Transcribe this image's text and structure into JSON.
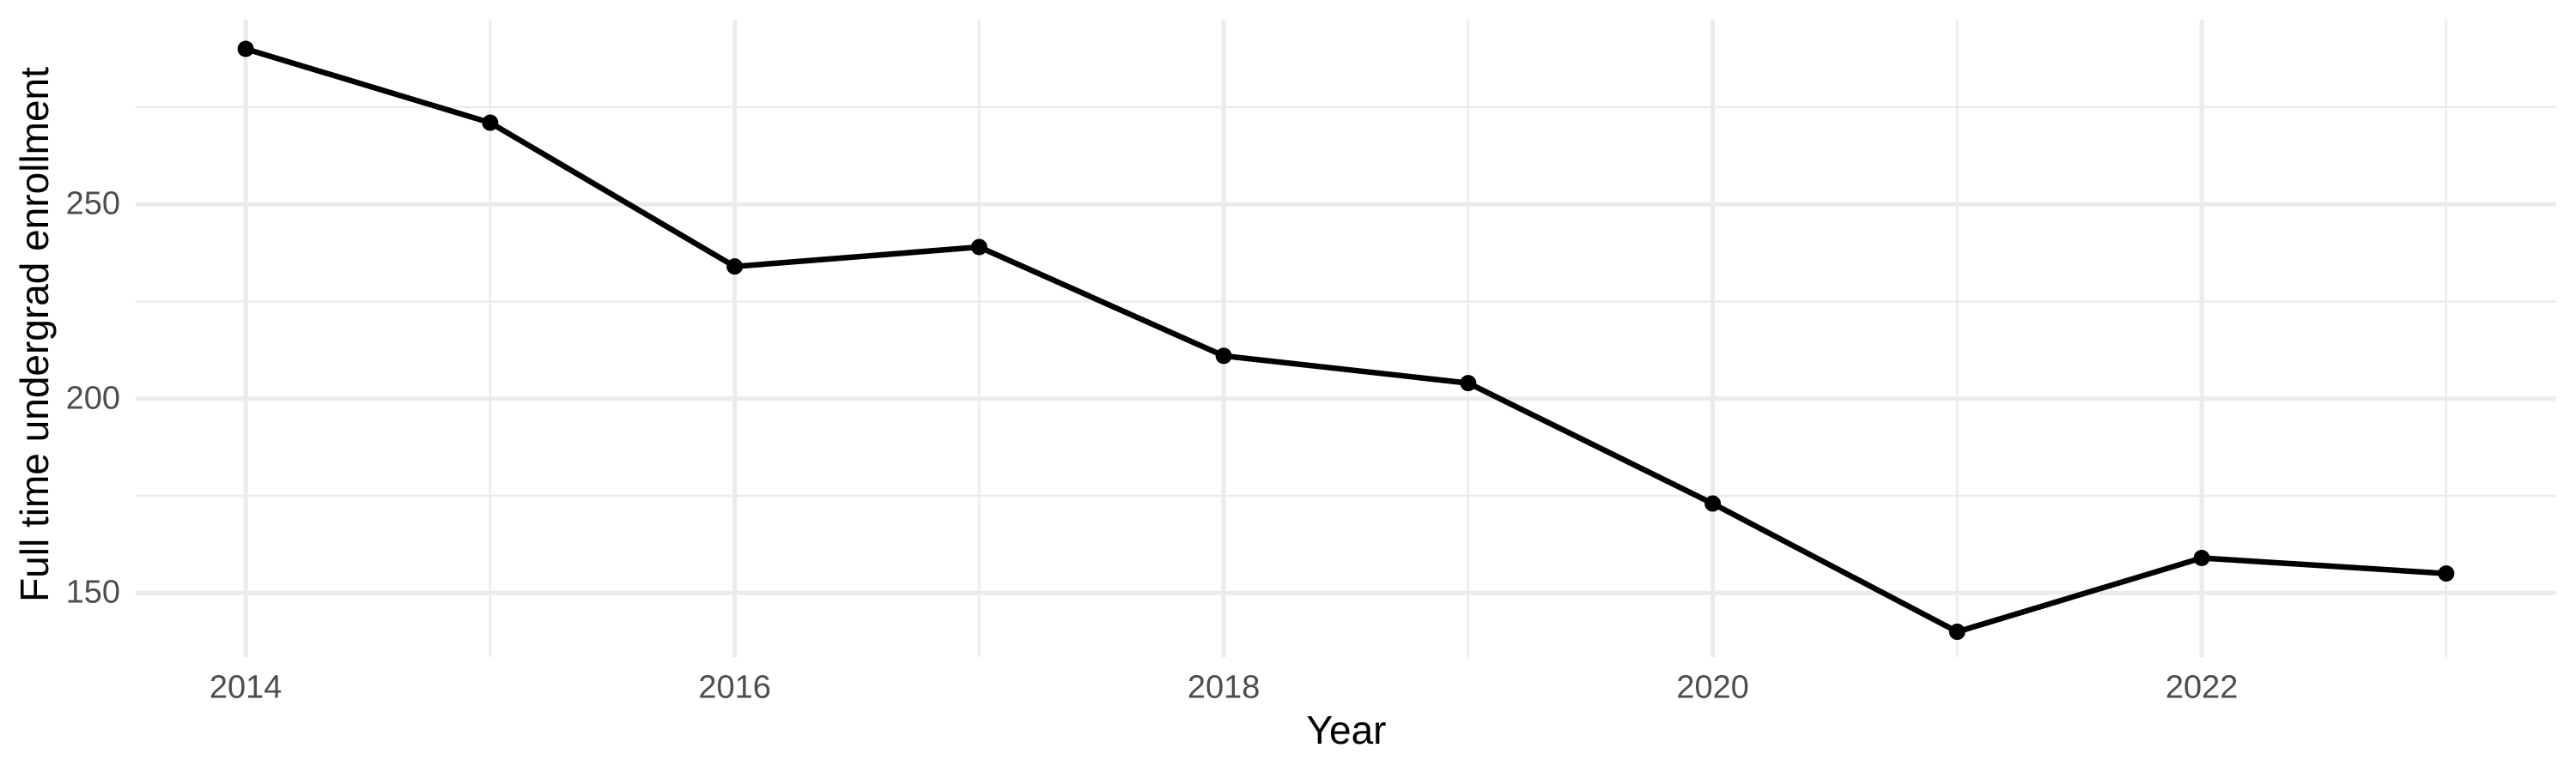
{
  "chart_data": {
    "type": "line",
    "title": "",
    "xlabel": "Year",
    "ylabel": "Full time undergrad enrollment",
    "x": [
      2014,
      2015,
      2016,
      2017,
      2018,
      2019,
      2020,
      2021,
      2022,
      2023
    ],
    "series": [
      {
        "name": "Full time undergrad enrollment",
        "values": [
          290,
          271,
          234,
          239,
          211,
          204,
          173,
          140,
          159,
          155
        ]
      }
    ],
    "xlim": [
      2013.55,
      2023.45
    ],
    "ylim": [
      133.5,
      297.5
    ],
    "x_major_ticks": {
      "values": [
        2014,
        2016,
        2018,
        2020,
        2022
      ],
      "labels": [
        "2014",
        "2016",
        "2018",
        "2020",
        "2022"
      ]
    },
    "x_minor_ticks": [
      2015,
      2017,
      2019,
      2021,
      2023
    ],
    "y_major_ticks": {
      "values": [
        150,
        200,
        250
      ],
      "labels": [
        "150",
        "200",
        "250"
      ]
    },
    "y_minor_ticks": [
      175,
      225,
      275
    ],
    "grid": "major and minor gridlines, no axis lines, no panel border",
    "legend": false,
    "style": {
      "line_color": "#000000",
      "point_color": "#000000",
      "grid_color": "#EBEBEB",
      "tick_label_color": "#4D4D4D",
      "axis_title_color": "#000000",
      "background": "#FFFFFF"
    }
  }
}
